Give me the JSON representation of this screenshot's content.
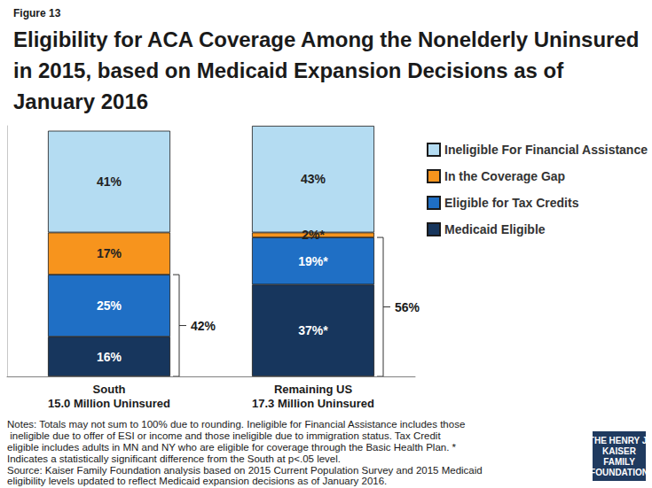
{
  "chart_data": {
    "type": "bar",
    "figure_label": "Figure 13",
    "title": "Eligibility for ACA Coverage Among the Nonelderly Uninsured in 2015, based on Medicaid Expansion Decisions as of January 2016",
    "categories": [
      "South\n15.0 Million Uninsured",
      "Remaining US\n17.3 Million Uninsured"
    ],
    "series": [
      {
        "name": "Medicaid Eligible",
        "color": "#17365d",
        "values": [
          16,
          37
        ],
        "value_labels": [
          "16%",
          "37%*"
        ]
      },
      {
        "name": "Eligible for Tax Credits",
        "color": "#1f6fc5",
        "values": [
          25,
          19
        ],
        "value_labels": [
          "25%",
          "19%*"
        ]
      },
      {
        "name": "In the Coverage Gap",
        "color": "#f7941d",
        "values": [
          17,
          2
        ],
        "value_labels": [
          "17%",
          "2%*"
        ]
      },
      {
        "name": "Ineligible For Financial Assistance",
        "color": "#b4dcf2",
        "values": [
          41,
          43
        ],
        "value_labels": [
          "41%",
          "43%"
        ]
      }
    ],
    "brackets": [
      {
        "label": "42%",
        "category": "South\n15.0 Million Uninsured",
        "series": [
          "Medicaid Eligible",
          "Eligible for Tax Credits"
        ]
      },
      {
        "label": "56%",
        "category": "Remaining US\n17.3 Million Uninsured",
        "series": [
          "Medicaid Eligible",
          "Eligible for Tax Credits"
        ]
      }
    ],
    "ylim": [
      0,
      101
    ],
    "stacked": true,
    "data_labels": true,
    "legend": "right",
    "grid": false,
    "tick_labels": "x",
    "notes": "Notes: Totals may not sum to 100% due to rounding. Ineligible for Financial Assistance includes those ineligible due to offer of ESI or income and those ineligible due to immigration status. Tax Credit eligible includes adults in MN and NY who are eligible for coverage through the Basic Health Plan. * Indicates a statistically significant difference from the South at p<.05 level.",
    "source": "Source: Kaiser Family Foundation analysis based on 2015 Current Population Survey and 2015 Medicaid eligibility levels updated to reflect Medicaid expansion decisions as of January 2016.",
    "logo": [
      "THE HENRY J.",
      "KAISER",
      "FAMILY",
      "FOUNDATION"
    ]
  }
}
